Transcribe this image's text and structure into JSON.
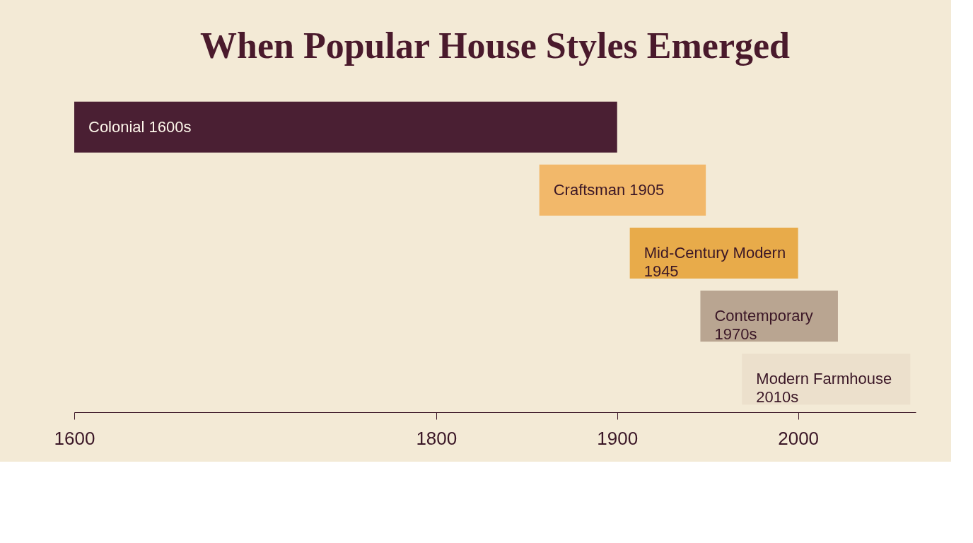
{
  "chart_data": {
    "type": "bar",
    "orientation": "horizontal",
    "title": "When Popular House Styles Emerged",
    "categories": [
      "Colonial 1600s",
      "Craftsman 1905",
      "Mid-Century Modern 1945",
      "Contemporary 1970s",
      "Modern Farmhouse 2010s"
    ],
    "base": [
      1600,
      1857,
      1907,
      1946,
      1969
    ],
    "values": [
      300,
      92,
      93,
      76,
      93
    ],
    "colors": [
      "#4a1f33",
      "#f2b86a",
      "#e8ab4a",
      "#b9a591",
      "#ece0cc"
    ],
    "xlim": [
      1600,
      2065
    ],
    "xticks": [
      1600,
      1800,
      1900,
      2000
    ],
    "tick_labels": "x",
    "grid": false
  }
}
